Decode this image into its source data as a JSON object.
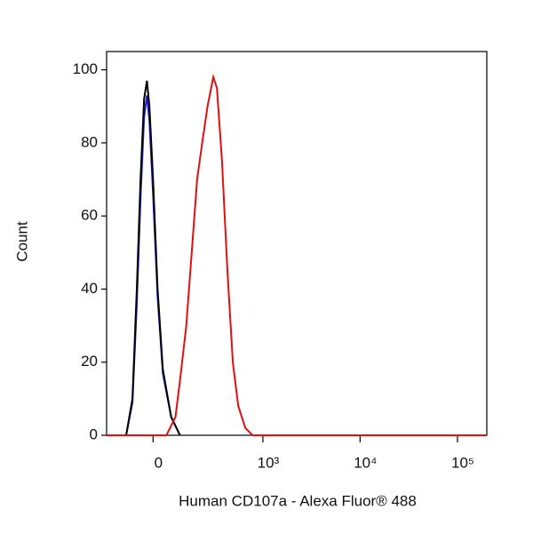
{
  "chart_data": {
    "type": "line",
    "x_label": "Human CD107a - Alexa Fluor® 488",
    "y_label": "Count",
    "xscale": "biexponential",
    "xlim": [
      -200,
      200000
    ],
    "ylim": [
      0,
      105
    ],
    "xticks": [
      {
        "value": 0,
        "label": "0"
      },
      {
        "value": 1000,
        "label": "10³"
      },
      {
        "value": 10000,
        "label": "10⁴"
      },
      {
        "value": 100000,
        "label": "10⁵"
      }
    ],
    "yticks": [
      0,
      20,
      40,
      60,
      80,
      100
    ],
    "series": [
      {
        "color": "#2020c8",
        "x": [
          -102,
          -76,
          -59,
          -45,
          -32,
          -22,
          -13,
          0,
          16,
          35,
          66,
          102
        ],
        "values": [
          0,
          9,
          36,
          65,
          87,
          93,
          86,
          66,
          38,
          17,
          5,
          0
        ]
      },
      {
        "color": "#000000",
        "x": [
          -102,
          -76,
          -59,
          -45,
          -32,
          -22,
          -13,
          0,
          16,
          35,
          66,
          102
        ],
        "values": [
          0,
          10,
          40,
          70,
          92,
          97,
          90,
          70,
          40,
          18,
          5,
          0
        ]
      },
      {
        "color": "#e01010",
        "x": [
          -200,
          48,
          83,
          102,
          130,
          157,
          186,
          216,
          251,
          293,
          323,
          368,
          422,
          483,
          552,
          656,
          782,
          200000
        ],
        "values": [
          0,
          0,
          5,
          15,
          30,
          50,
          70,
          80,
          90,
          98,
          95,
          75,
          45,
          20,
          8,
          2,
          0,
          0
        ]
      }
    ]
  }
}
